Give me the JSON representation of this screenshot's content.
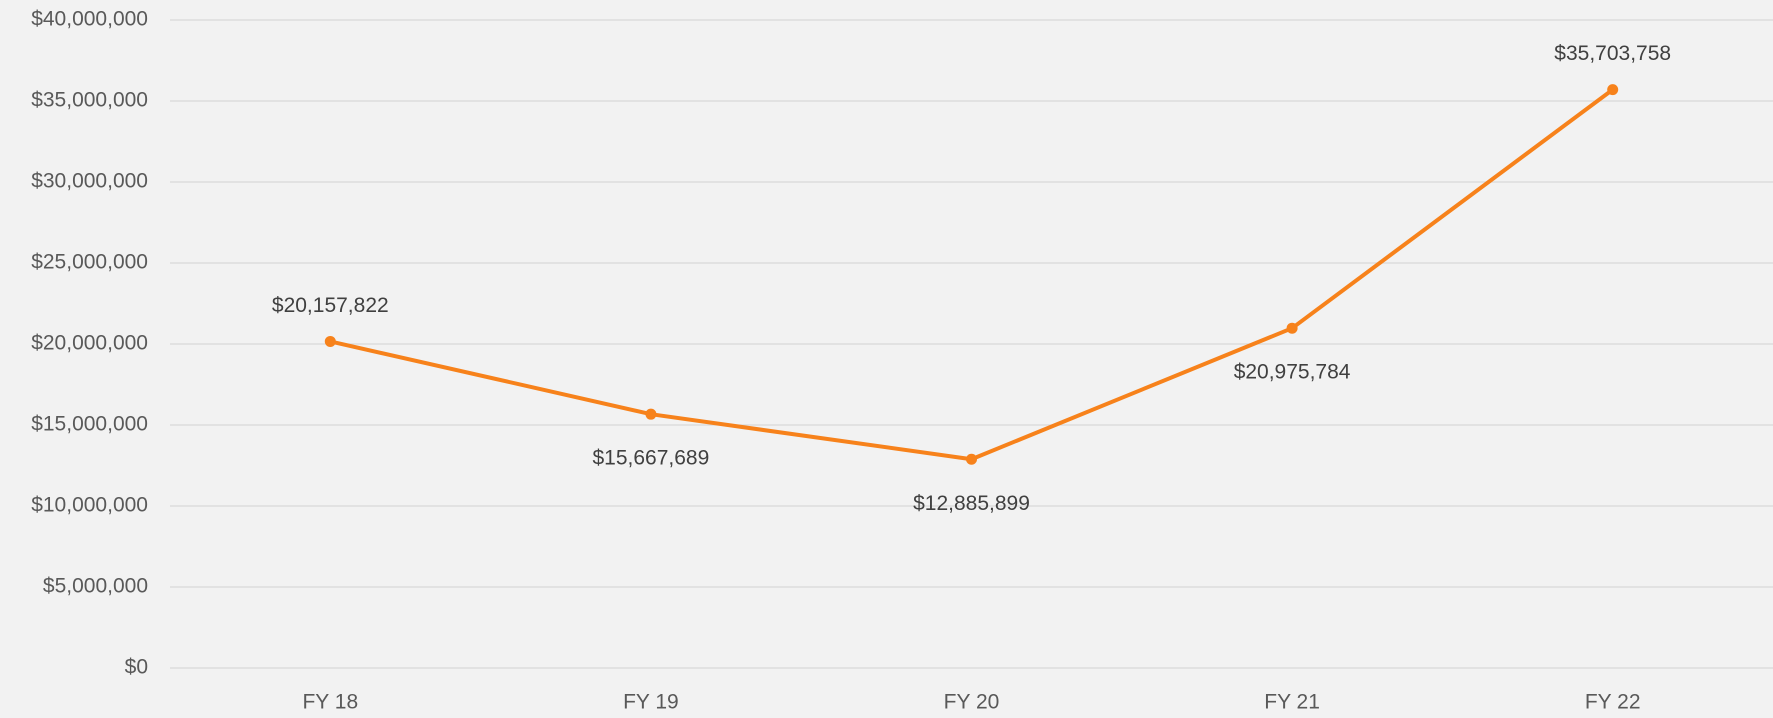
{
  "chart_data": {
    "type": "line",
    "categories": [
      "FY 18",
      "FY 19",
      "FY 20",
      "FY 21",
      "FY 22"
    ],
    "series": [
      {
        "color": "#f7821b",
        "values": [
          20157822,
          15667689,
          12885899,
          20975784,
          35703758
        ],
        "value_labels": [
          "$20,157,822",
          "$15,667,689",
          "$12,885,899",
          "$20,975,784",
          "$35,703,758"
        ]
      }
    ],
    "ylim": [
      0,
      40000000
    ],
    "yticks": [
      {
        "value": 0,
        "label": "$0"
      },
      {
        "value": 5000000,
        "label": "$5,000,000"
      },
      {
        "value": 10000000,
        "label": "$10,000,000"
      },
      {
        "value": 15000000,
        "label": "$15,000,000"
      },
      {
        "value": 20000000,
        "label": "$20,000,000"
      },
      {
        "value": 25000000,
        "label": "$25,000,000"
      },
      {
        "value": 30000000,
        "label": "$30,000,000"
      },
      {
        "value": 35000000,
        "label": "$35,000,000"
      },
      {
        "value": 40000000,
        "label": "$40,000,000"
      }
    ],
    "grid": true
  }
}
